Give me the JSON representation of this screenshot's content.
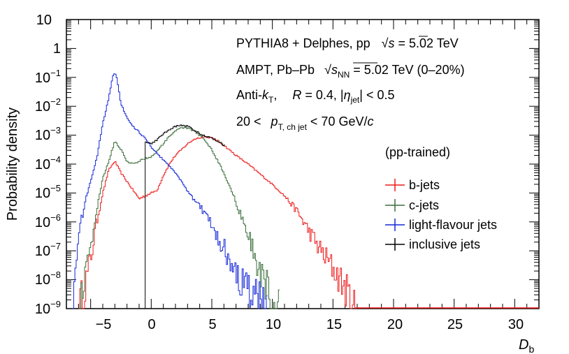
{
  "chart_data": {
    "type": "line",
    "style": "step-histogram",
    "xlabel_main": "D",
    "xlabel_sub": "b",
    "ylabel": "Probability density",
    "xlim": [
      -7,
      32
    ],
    "ylim_log10": [
      -9,
      1
    ],
    "yscale": "log",
    "x_ticks": [
      -5,
      0,
      5,
      10,
      15,
      20,
      25,
      30
    ],
    "x_tick_labels": [
      "−5",
      "0",
      "5",
      "10",
      "15",
      "20",
      "25",
      "30"
    ],
    "y_ticks": [
      {
        "exp": 1,
        "label": "10",
        "sup": ""
      },
      {
        "exp": 0,
        "label": "1",
        "sup": ""
      },
      {
        "exp": -1,
        "label": "10",
        "sup": "−1"
      },
      {
        "exp": -2,
        "label": "10",
        "sup": "−2"
      },
      {
        "exp": -3,
        "label": "10",
        "sup": "−3"
      },
      {
        "exp": -4,
        "label": "10",
        "sup": "−4"
      },
      {
        "exp": -5,
        "label": "10",
        "sup": "−5"
      },
      {
        "exp": -6,
        "label": "10",
        "sup": "−6"
      },
      {
        "exp": -7,
        "label": "10",
        "sup": "−7"
      },
      {
        "exp": -8,
        "label": "10",
        "sup": "−8"
      },
      {
        "exp": -9,
        "label": "10",
        "sup": "−9"
      }
    ],
    "info_lines": {
      "line1": {
        "a": "PYTHIA8 + Delphes, pp",
        "b": "√",
        "c": "s",
        "d": " = 5.02 TeV"
      },
      "line2": {
        "a": "AMPT, Pb–Pb",
        "b": "√",
        "c": "s",
        "d": "NN",
        "e": " = 5.02 TeV (0–20%)"
      },
      "line3": {
        "a": "Anti-",
        "b": "k",
        "c": "T",
        "d": ",",
        "e": "R",
        "f": " = 0.4, |",
        "g": "η",
        "h": "jet",
        "i": "| < 0.5"
      },
      "line4": {
        "a": "20 <",
        "b": "p",
        "c": "T, ch jet",
        "d": " < 70 GeV/",
        "e": "c"
      }
    },
    "legend": {
      "header": "(pp-trained)",
      "position": "right"
    },
    "series": [
      {
        "name": "b-jets",
        "color": "#ee1c1c",
        "x": [
          -6.0,
          -5.5,
          -5.0,
          -4.5,
          -4.0,
          -3.5,
          -3.0,
          -2.5,
          -2.0,
          -1.5,
          -1.0,
          -0.5,
          0.0,
          0.5,
          1.0,
          1.5,
          2.0,
          2.5,
          3.0,
          3.5,
          4.0,
          4.5,
          5.0,
          5.5,
          6.0,
          7.0,
          8.0,
          9.0,
          10.0,
          11.0,
          12.0,
          13.0,
          14.0,
          15.0,
          16.0,
          16.8
        ],
        "log10_y": [
          -9.0,
          -8.3,
          -7.3,
          -6.0,
          -5.0,
          -4.2,
          -3.9,
          -4.3,
          -4.6,
          -4.9,
          -5.2,
          -5.1,
          -5.0,
          -4.9,
          -4.4,
          -4.0,
          -3.7,
          -3.5,
          -3.3,
          -3.15,
          -3.08,
          -3.05,
          -3.1,
          -3.2,
          -3.35,
          -3.7,
          -4.0,
          -4.35,
          -4.7,
          -5.1,
          -5.6,
          -6.3,
          -7.0,
          -7.6,
          -8.3,
          -9.0
        ]
      },
      {
        "name": "c-jets",
        "color": "#3b6e3b",
        "x": [
          -6.0,
          -5.5,
          -5.0,
          -4.5,
          -4.0,
          -3.5,
          -3.0,
          -2.5,
          -2.0,
          -1.5,
          -1.0,
          -0.5,
          0.0,
          0.5,
          1.0,
          1.5,
          2.0,
          2.5,
          3.0,
          3.5,
          4.0,
          4.5,
          5.0,
          5.5,
          6.0,
          6.5,
          7.0,
          7.5,
          8.0,
          8.5,
          9.0,
          9.5,
          10.0,
          10.5
        ],
        "log10_y": [
          -9.0,
          -8.0,
          -6.8,
          -5.6,
          -4.5,
          -3.9,
          -3.2,
          -3.5,
          -3.9,
          -4.0,
          -3.9,
          -3.8,
          -3.75,
          -3.55,
          -3.3,
          -3.05,
          -2.85,
          -2.75,
          -2.75,
          -2.85,
          -3.0,
          -3.2,
          -3.5,
          -3.9,
          -4.3,
          -4.8,
          -5.3,
          -5.9,
          -6.5,
          -7.1,
          -7.7,
          -8.2,
          -8.7,
          -9.0
        ]
      },
      {
        "name": "light-flavour jets",
        "color": "#1428d8",
        "x": [
          -6.5,
          -6.0,
          -5.5,
          -5.0,
          -4.5,
          -4.0,
          -3.5,
          -3.2,
          -3.0,
          -2.8,
          -2.5,
          -2.0,
          -1.5,
          -1.0,
          -0.5,
          0.0,
          0.5,
          1.0,
          1.5,
          2.0,
          2.5,
          3.0,
          3.5,
          4.0,
          4.5,
          5.0,
          5.5,
          6.0,
          6.5,
          7.0,
          7.5,
          8.0,
          8.5,
          9.0,
          9.5
        ],
        "log10_y": [
          -9.0,
          -6.5,
          -5.4,
          -4.6,
          -3.8,
          -2.6,
          -1.7,
          -1.0,
          -0.85,
          -1.1,
          -1.9,
          -2.4,
          -2.7,
          -2.9,
          -3.1,
          -3.4,
          -3.65,
          -3.85,
          -4.05,
          -4.3,
          -4.6,
          -4.95,
          -5.2,
          -5.45,
          -5.75,
          -6.1,
          -6.5,
          -6.9,
          -7.3,
          -7.7,
          -8.1,
          -8.4,
          -8.6,
          -8.8,
          -9.0
        ]
      },
      {
        "name": "inclusive jets",
        "color": "#000000",
        "x": [
          -0.5,
          0.0,
          0.5,
          1.0,
          1.5,
          2.0,
          2.5,
          3.0,
          3.5,
          4.0,
          4.5,
          5.0,
          5.5,
          6.0
        ],
        "log10_y": [
          -3.2,
          -3.3,
          -3.15,
          -2.95,
          -2.8,
          -2.7,
          -2.65,
          -2.7,
          -2.8,
          -2.95,
          -3.05,
          -3.1,
          -3.2,
          -3.35
        ]
      }
    ]
  }
}
